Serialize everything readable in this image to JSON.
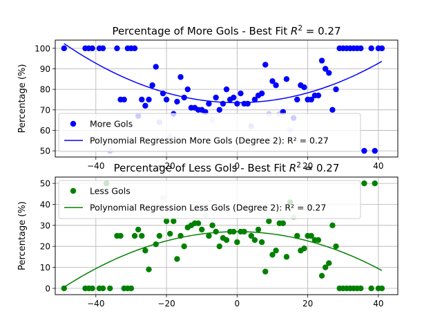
{
  "chart_data": [
    {
      "type": "scatter",
      "title": "Percentage of More Gols - Best Fit R² = 0.27",
      "title_main": "Percentage of More Gols - Best Fit ",
      "title_r2_sym": "R",
      "title_r2_exp": "2",
      "title_r2_val": " = 0.27",
      "ylabel": "Percentage (%)",
      "xlim": [
        -51.5,
        45.5
      ],
      "ylim": [
        47,
        104
      ],
      "xticks": [
        -40,
        -20,
        0,
        20,
        40
      ],
      "yticks": [
        50,
        60,
        70,
        80,
        90,
        100
      ],
      "grid": true,
      "legend_placement": "lower-left",
      "legend": [
        {
          "kind": "marker",
          "label": "More Gols"
        },
        {
          "kind": "line",
          "label": "Polynomial Regression More Gols (Degree 2): R² = 0.27"
        }
      ],
      "series": [
        {
          "name": "More Gols",
          "color": "#0000ff",
          "x": [
            -49,
            -43,
            -42,
            -41,
            -39,
            -38,
            -36,
            -34,
            -33,
            -32,
            -31,
            -30,
            -29,
            -28,
            -27,
            -26,
            -25,
            -24,
            -23,
            -22,
            -21,
            -20,
            -19,
            -18,
            -17,
            -16,
            -15,
            -14,
            -13,
            -12,
            -11,
            -10,
            -9,
            -8,
            -7,
            -6,
            -5,
            -4,
            -3,
            -2,
            -1,
            0,
            1,
            2,
            3,
            4,
            5,
            6,
            7,
            8,
            9,
            10,
            11,
            12,
            13,
            14,
            15,
            16,
            17,
            18,
            19,
            20,
            21,
            22,
            23,
            24,
            25,
            26,
            27,
            28,
            29,
            30,
            31,
            32,
            33,
            34,
            35,
            36,
            38,
            39,
            40,
            41
          ],
          "y": [
            100,
            100,
            100,
            100,
            100,
            100,
            50,
            100,
            75,
            75,
            100,
            100,
            100,
            67,
            75,
            72,
            75,
            82,
            91,
            64,
            78,
            75,
            57,
            68,
            74,
            86,
            76,
            80,
            71,
            71,
            70,
            70,
            69,
            73,
            65,
            76,
            70,
            73,
            80,
            75,
            76,
            73,
            78,
            73,
            73,
            62,
            75,
            77,
            78,
            92,
            68,
            84,
            82,
            68,
            69,
            85,
            60,
            66,
            75,
            82,
            81,
            75,
            75,
            77,
            77,
            94,
            90,
            88,
            70,
            80,
            100,
            100,
            100,
            100,
            100,
            100,
            100,
            50,
            100,
            50,
            100,
            100
          ],
          "alpha": [
            1,
            1,
            1,
            1,
            1,
            1,
            0.2,
            1,
            1,
            1,
            1,
            1,
            1,
            1,
            1,
            1,
            1,
            1,
            1,
            0.4,
            1,
            1,
            0.2,
            1,
            1,
            1,
            1,
            1,
            1,
            1,
            1,
            1,
            1,
            1,
            0.2,
            1,
            1,
            1,
            1,
            1,
            1,
            1,
            1,
            1,
            1,
            0.4,
            1,
            1,
            1,
            1,
            0.2,
            1,
            1,
            0.2,
            1,
            1,
            0.2,
            1,
            1,
            1,
            1,
            1,
            1,
            1,
            1,
            1,
            1,
            1,
            1,
            1,
            1,
            1,
            1,
            1,
            1,
            1,
            1,
            1,
            1,
            1,
            1,
            1
          ]
        }
      ],
      "fit": {
        "name": "Polynomial Regression More Gols (Degree 2)",
        "color": "#0000ff",
        "coefficients": [
          0.012,
          0.0,
          73.5
        ],
        "x_range": [
          -49,
          41
        ]
      }
    },
    {
      "type": "scatter",
      "title": "Percentage of Less Gols - Best Fit R² = 0.27",
      "title_main": "Percentage of Less Gols - Best Fit ",
      "title_r2_sym": "R",
      "title_r2_exp": "2",
      "title_r2_val": " = 0.27",
      "ylabel": "Percentage (%)",
      "xlim": [
        -51.5,
        45.5
      ],
      "ylim": [
        -3,
        53
      ],
      "xticks": [
        -40,
        -20,
        0,
        20,
        40
      ],
      "yticks": [
        0,
        10,
        20,
        30,
        40,
        50
      ],
      "grid": true,
      "legend_placement": "upper-left",
      "legend": [
        {
          "kind": "marker",
          "label": "Less Gols"
        },
        {
          "kind": "line",
          "label": "Polynomial Regression Less Gols (Degree 2): R² = 0.27"
        }
      ],
      "series": [
        {
          "name": "Less Gols",
          "color": "#008000",
          "x": [
            -49,
            -43,
            -42,
            -41,
            -39,
            -38,
            -37,
            -36,
            -34,
            -33,
            -32,
            -31,
            -30,
            -29,
            -28,
            -27,
            -26,
            -25,
            -24,
            -23,
            -22,
            -21,
            -20,
            -19,
            -18,
            -17,
            -16,
            -15,
            -14,
            -13,
            -12,
            -11,
            -10,
            -9,
            -8,
            -7,
            -6,
            -5,
            -4,
            -3,
            -2,
            -1,
            0,
            1,
            2,
            3,
            4,
            5,
            6,
            7,
            8,
            9,
            10,
            11,
            12,
            13,
            14,
            15,
            16,
            17,
            18,
            19,
            20,
            21,
            22,
            23,
            24,
            25,
            26,
            27,
            28,
            29,
            30,
            31,
            32,
            33,
            34,
            35,
            36,
            38,
            39,
            40,
            41
          ],
          "y": [
            0,
            0,
            0,
            0,
            0,
            0,
            50,
            0,
            25,
            25,
            0,
            0,
            0,
            25,
            28,
            25,
            18,
            9,
            36,
            21,
            25,
            43,
            32,
            26,
            32,
            14,
            25,
            20,
            29,
            30,
            31,
            31,
            28,
            35,
            25,
            30,
            27,
            20,
            24,
            23,
            27,
            27,
            22,
            27,
            27,
            38,
            25,
            23,
            28,
            22,
            8,
            32,
            16,
            18,
            31,
            31,
            15,
            41,
            34,
            25,
            18,
            19,
            25,
            25,
            23,
            23,
            6,
            10,
            12,
            30,
            20,
            0,
            0,
            0,
            0,
            0,
            0,
            0,
            50,
            0,
            50,
            0,
            0
          ],
          "alpha": [
            1,
            1,
            1,
            1,
            1,
            1,
            1,
            1,
            1,
            1,
            1,
            1,
            1,
            1,
            1,
            1,
            1,
            1,
            0.2,
            1,
            1,
            0.2,
            1,
            1,
            1,
            1,
            1,
            1,
            1,
            1,
            1,
            1,
            1,
            0.2,
            1,
            1,
            1,
            1,
            1,
            1,
            1,
            1,
            1,
            1,
            1,
            0.2,
            1,
            1,
            1,
            1,
            1,
            1,
            1,
            1,
            1,
            1,
            1,
            1,
            0.4,
            1,
            1,
            1,
            1,
            1,
            1,
            1,
            1,
            1,
            1,
            1,
            1,
            1,
            1,
            1,
            1,
            1,
            1,
            1,
            1,
            1,
            1,
            1,
            1
          ]
        }
      ],
      "fit": {
        "name": "Polynomial Regression Less Gols (Degree 2)",
        "color": "#008000",
        "coefficients": [
          -0.011,
          0.0,
          27.0
        ],
        "x_range": [
          -49,
          41
        ]
      }
    }
  ]
}
